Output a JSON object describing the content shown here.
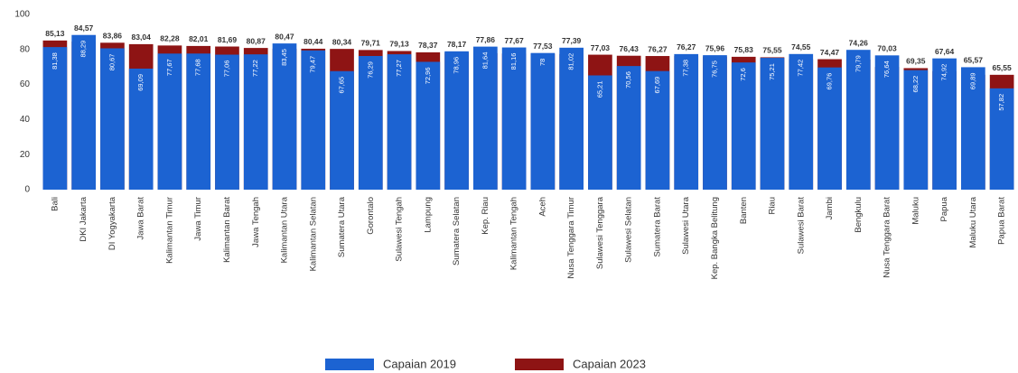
{
  "chart_data": {
    "type": "bar",
    "categories": [
      "Bali",
      "DKI Jakarta",
      "DI Yogyakarta",
      "Jawa Barat",
      "Kalimantan Timur",
      "Jawa Timur",
      "Kalimantan Barat",
      "Jawa Tengah",
      "Kalimantan Utara",
      "Kalimantan Selatan",
      "Sumatera Utara",
      "Gorontalo",
      "Sulawesi Tengah",
      "Lampung",
      "Sumatera Selatan",
      "Kep. Riau",
      "Kalimantan Tengah",
      "Aceh",
      "Nusa Tenggara Timur",
      "Sulawesi Tenggara",
      "Sulawesi Selatan",
      "Sumatera Barat",
      "Sulawesi Utara",
      "Kep. Bangka Belitung",
      "Banten",
      "Riau",
      "Sulawesi Barat",
      "Jambi",
      "Bengkulu",
      "Nusa Tenggara Barat",
      "Maluku",
      "Papua",
      "Maluku Utara",
      "Papua Barat"
    ],
    "series": [
      {
        "name": "Capaian 2019",
        "color": "#1c63d2",
        "values": [
          81.38,
          88.29,
          80.67,
          69.09,
          77.67,
          77.68,
          77.06,
          77.22,
          83.45,
          79.47,
          67.65,
          76.29,
          77.27,
          72.96,
          78.96,
          81.64,
          81.16,
          78,
          81.02,
          65.21,
          70.56,
          67.69,
          77.38,
          76.75,
          72.6,
          75.21,
          77.42,
          69.76,
          79.79,
          76.64,
          68.22,
          74.92,
          69.89,
          57.82
        ],
        "value_labels": [
          "81,38",
          "88,29",
          "80,67",
          "69,09",
          "77,67",
          "77,68",
          "77,06",
          "77,22",
          "83,45",
          "79,47",
          "67,65",
          "76,29",
          "77,27",
          "72,96",
          "78,96",
          "81,64",
          "81,16",
          "78",
          "81,02",
          "65,21",
          "70,56",
          "67,69",
          "77,38",
          "76,75",
          "72,6",
          "75,21",
          "77,42",
          "69,76",
          "79,79",
          "76,64",
          "68,22",
          "74,92",
          "69,89",
          "57,82"
        ]
      },
      {
        "name": "Capaian 2023",
        "color": "#8e1414",
        "values": [
          85.13,
          84.57,
          83.86,
          83.04,
          82.28,
          82.01,
          81.69,
          80.87,
          80.47,
          80.44,
          80.34,
          79.71,
          79.13,
          78.37,
          78.17,
          77.86,
          77.67,
          77.53,
          77.39,
          77.03,
          76.43,
          76.27,
          76.27,
          75.96,
          75.83,
          75.55,
          74.55,
          74.47,
          74.26,
          70.03,
          69.35,
          67.64,
          65.57,
          65.55
        ],
        "value_labels": [
          "85,13",
          "84,57",
          "83,86",
          "83,04",
          "82,28",
          "82,01",
          "81,69",
          "80,87",
          "80,47",
          "80,44",
          "80,34",
          "79,71",
          "79,13",
          "78,37",
          "78,17",
          "77,86",
          "77,67",
          "77,53",
          "77,39",
          "77,03",
          "76,43",
          "76,27",
          "76,27",
          "75,96",
          "75,83",
          "75,55",
          "74,55",
          "74,47",
          "74,26",
          "70,03",
          "69,35",
          "67,64",
          "65,57",
          "65,55"
        ]
      }
    ],
    "ylim": [
      0,
      100
    ],
    "yticks": [
      0,
      20,
      40,
      60,
      80,
      100
    ],
    "grid": false,
    "legend": "bottom"
  }
}
